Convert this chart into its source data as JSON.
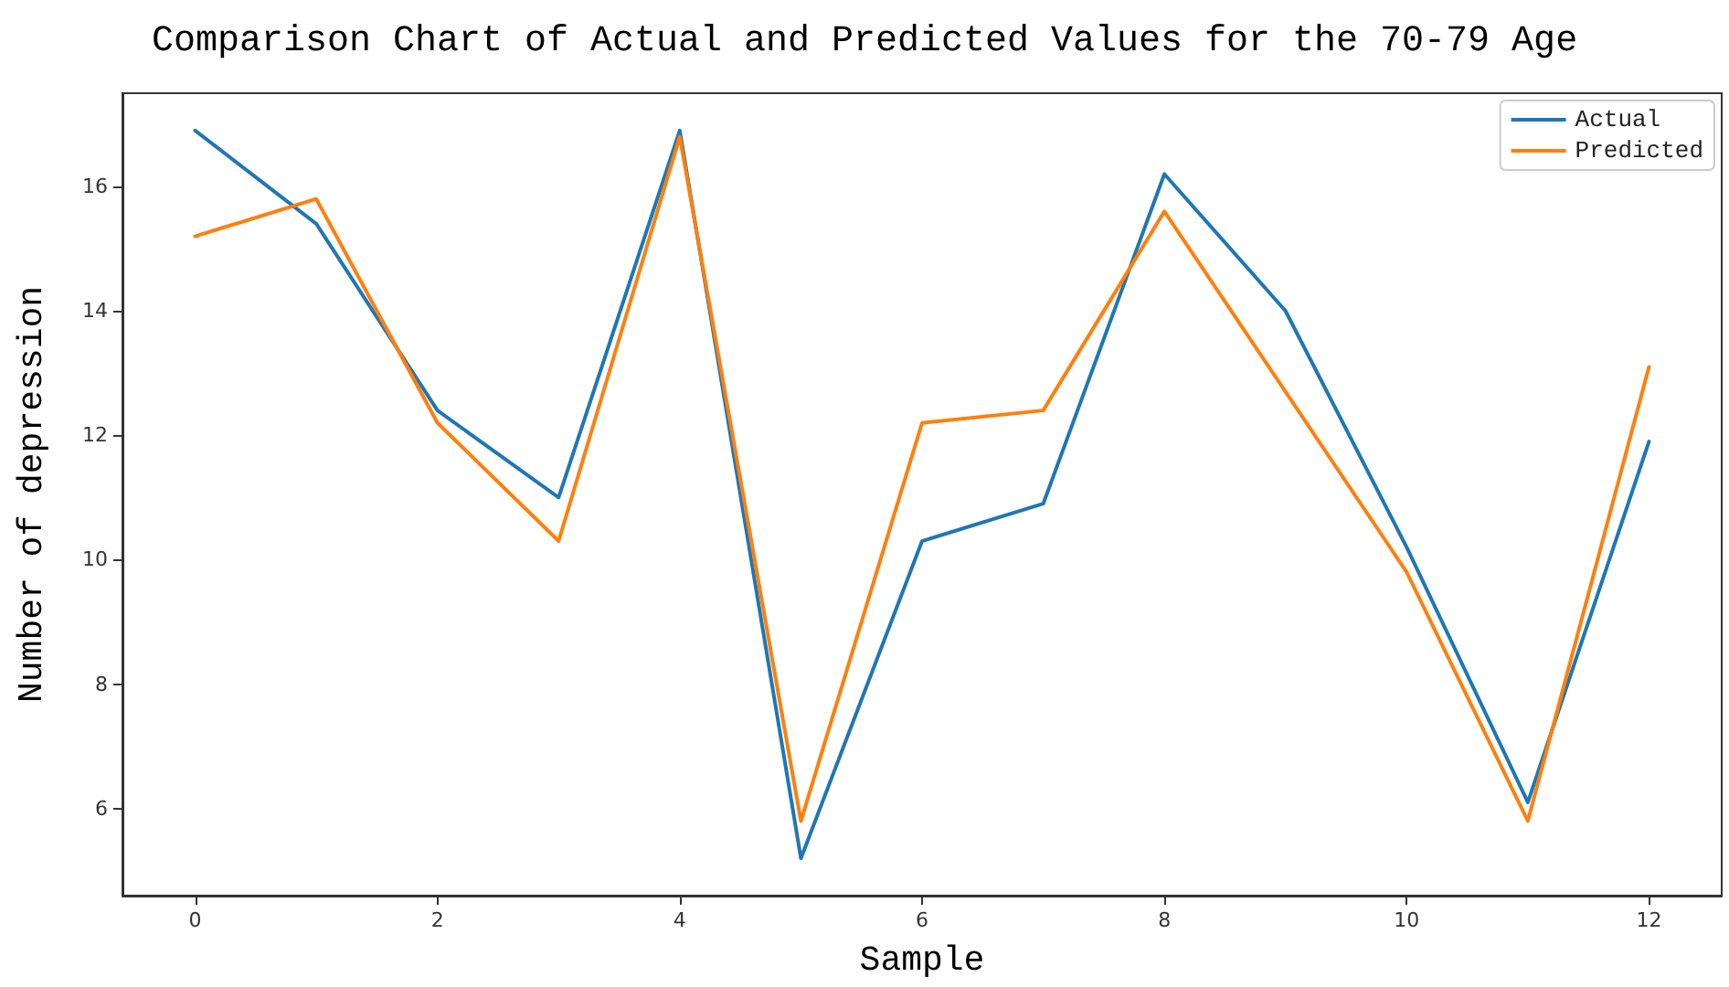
{
  "chart_data": {
    "type": "line",
    "title": "Comparison Chart of Actual and Predicted Values for the 70-79 Age",
    "xlabel": "Sample",
    "ylabel": "Number of depression",
    "x": [
      0,
      1,
      2,
      3,
      4,
      5,
      6,
      7,
      8,
      9,
      10,
      11,
      12
    ],
    "series": [
      {
        "name": "Actual",
        "color": "#1f77b4",
        "values": [
          16.9,
          15.4,
          12.4,
          11.0,
          16.9,
          5.2,
          10.3,
          10.9,
          16.2,
          14.0,
          10.2,
          6.1,
          11.9
        ]
      },
      {
        "name": "Predicted",
        "color": "#ff7f0e",
        "values": [
          15.2,
          15.8,
          12.2,
          10.3,
          16.8,
          5.8,
          12.2,
          12.4,
          15.6,
          12.7,
          9.8,
          5.8,
          13.1
        ]
      }
    ],
    "xlim": [
      -0.6,
      12.6
    ],
    "xticks": [
      0,
      2,
      4,
      6,
      8,
      10,
      12
    ],
    "ylim": [
      4.6,
      17.5
    ],
    "yticks": [
      6,
      8,
      10,
      12,
      14,
      16
    ],
    "grid": false,
    "legend": "top right",
    "marker": "none",
    "line_style": "solid"
  }
}
